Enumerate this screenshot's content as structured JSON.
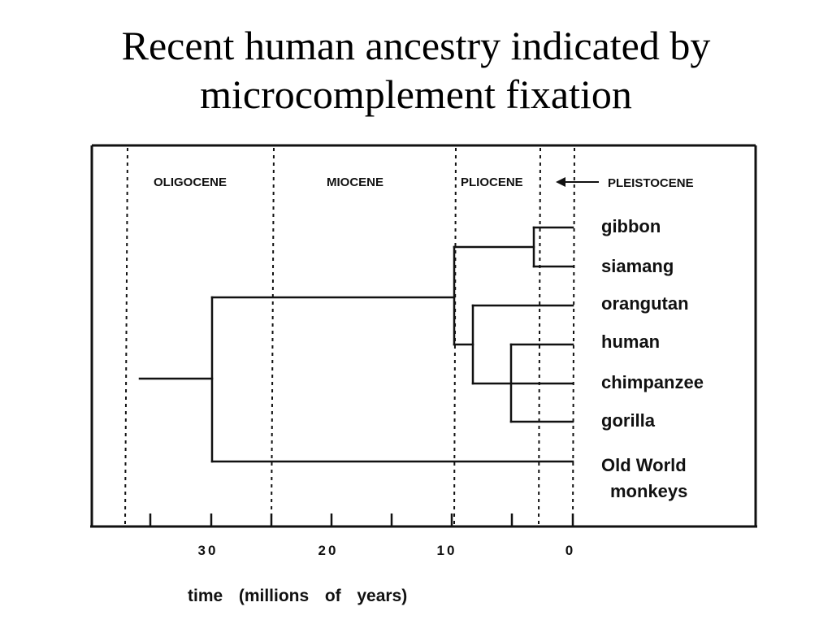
{
  "slide": {
    "title_line1": "Recent human ancestry indicated by",
    "title_line2": "microcomplement fixation"
  },
  "epochs": [
    "OLIGOCENE",
    "MIOCENE",
    "PLIOCENE",
    "PLEISTOCENE"
  ],
  "taxa": {
    "gibbon": "gibbon",
    "siamang": "siamang",
    "orangutan": "orangutan",
    "human": "human",
    "chimpanzee": "chimpanzee",
    "gorilla": "gorilla",
    "old_world_line1": "Old World",
    "old_world_line2": "monkeys"
  },
  "axis": {
    "tick_labels": [
      "30",
      "20",
      "10",
      "0"
    ],
    "title": "time  (millions  of  years)"
  }
}
